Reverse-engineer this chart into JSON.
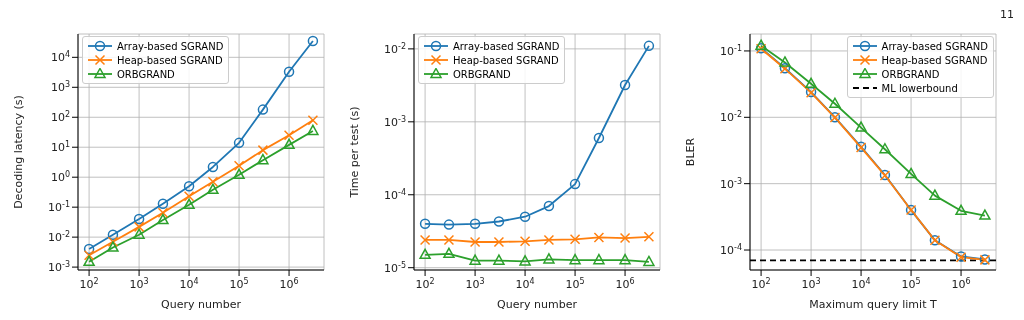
{
  "chart_data": [
    {
      "type": "line",
      "xlabel": "Query number",
      "ylabel": "Decoding latency (s)",
      "log": "xy",
      "grid": true,
      "legend": "top left",
      "x": [
        100,
        300,
        1000,
        3000,
        10000,
        30000,
        100000,
        300000,
        1000000,
        3000000
      ],
      "xlim": [
        60,
        5000000
      ],
      "xticks": [
        {
          "value": 100,
          "label": "10$^{2}$"
        },
        {
          "value": 1000,
          "label": "10$^{3}$"
        },
        {
          "value": 10000,
          "label": "10$^{4}$"
        },
        {
          "value": 100000,
          "label": "10$^{5}$"
        },
        {
          "value": 1000000,
          "label": "10$^{6}$"
        }
      ],
      "ylim": [
        0.0008,
        60000
      ],
      "yticks": [
        {
          "value": 0.001,
          "label": "10$^{-3}$"
        },
        {
          "value": 0.01,
          "label": "10$^{-2}$"
        },
        {
          "value": 0.1,
          "label": "10$^{-1}$"
        },
        {
          "value": 1,
          "label": "10$^{0}$"
        },
        {
          "value": 10,
          "label": "10$^{1}$"
        },
        {
          "value": 100,
          "label": "10$^{2}$"
        },
        {
          "value": 1000,
          "label": "10$^{3}$"
        },
        {
          "value": 10000,
          "label": "10$^{4}$"
        }
      ],
      "series": [
        {
          "name": "Array-based SGRAND",
          "color": "#1f77b4",
          "marker": "circle",
          "values": [
            0.004,
            0.012,
            0.04,
            0.13,
            0.5,
            2.2,
            14,
            180,
            3300,
            35000
          ]
        },
        {
          "name": "Heap-based SGRAND",
          "color": "#ff7f0e",
          "marker": "cross",
          "values": [
            0.0025,
            0.007,
            0.022,
            0.065,
            0.23,
            0.7,
            2.4,
            8,
            25,
            80
          ]
        },
        {
          "name": "ORBGRAND",
          "color": "#2ca02c",
          "marker": "triangle",
          "values": [
            0.0015,
            0.0045,
            0.012,
            0.037,
            0.12,
            0.38,
            1.2,
            3.7,
            12,
            35
          ]
        }
      ]
    },
    {
      "type": "line",
      "xlabel": "Query number",
      "ylabel": "Time per test (s)",
      "log": "xy",
      "grid": true,
      "legend": "top left",
      "x": [
        100,
        300,
        1000,
        3000,
        10000,
        30000,
        100000,
        300000,
        1000000,
        3000000
      ],
      "xlim": [
        60,
        5000000
      ],
      "xticks": [
        {
          "value": 100,
          "label": "10$^{2}$"
        },
        {
          "value": 1000,
          "label": "10$^{3}$"
        },
        {
          "value": 10000,
          "label": "10$^{4}$"
        },
        {
          "value": 100000,
          "label": "10$^{5}$"
        },
        {
          "value": 1000000,
          "label": "10$^{6}$"
        }
      ],
      "ylim": [
        9.3e-06,
        0.016
      ],
      "yticks": [
        {
          "value": 1e-05,
          "label": "10$^{-5}$"
        },
        {
          "value": 0.0001,
          "label": "10$^{-4}$"
        },
        {
          "value": 0.001,
          "label": "10$^{-3}$"
        },
        {
          "value": 0.01,
          "label": "10$^{-2}$"
        }
      ],
      "series": [
        {
          "name": "Array-based SGRAND",
          "color": "#1f77b4",
          "marker": "circle",
          "values": [
            4e-05,
            3.9e-05,
            4e-05,
            4.3e-05,
            5e-05,
            7e-05,
            0.00014,
            0.0006,
            0.0032,
            0.011
          ]
        },
        {
          "name": "Heap-based SGRAND",
          "color": "#ff7f0e",
          "marker": "cross",
          "values": [
            2.4e-05,
            2.4e-05,
            2.25e-05,
            2.25e-05,
            2.3e-05,
            2.4e-05,
            2.45e-05,
            2.6e-05,
            2.55e-05,
            2.65e-05
          ]
        },
        {
          "name": "ORBGRAND",
          "color": "#2ca02c",
          "marker": "triangle",
          "values": [
            1.5e-05,
            1.55e-05,
            1.25e-05,
            1.25e-05,
            1.22e-05,
            1.3e-05,
            1.27e-05,
            1.27e-05,
            1.27e-05,
            1.2e-05
          ]
        }
      ]
    },
    {
      "type": "line",
      "xlabel": "Maximum query limit T",
      "ylabel": "BLER",
      "log": "xy",
      "grid": true,
      "legend": "top right",
      "annotations": [
        "11"
      ],
      "x": [
        100,
        300,
        1000,
        3000,
        10000,
        30000,
        100000,
        300000,
        1000000,
        3000000
      ],
      "xlim": [
        60,
        5000000
      ],
      "xticks": [
        {
          "value": 100,
          "label": "10$^{2}$"
        },
        {
          "value": 1000,
          "label": "10$^{3}$"
        },
        {
          "value": 10000,
          "label": "10$^{4}$"
        },
        {
          "value": 100000,
          "label": "10$^{5}$"
        },
        {
          "value": 1000000,
          "label": "10$^{6}$"
        }
      ],
      "ylim": [
        5e-05,
        0.18
      ],
      "yticks": [
        {
          "value": 0.0001,
          "label": "10$^{-4}$"
        },
        {
          "value": 0.001,
          "label": "10$^{-3}$"
        },
        {
          "value": 0.01,
          "label": "10$^{-2}$"
        },
        {
          "value": 0.1,
          "label": "10$^{-1}$"
        }
      ],
      "ref_lines": [
        {
          "axis": "y",
          "value": 7e-05,
          "label": "ML lowerbound",
          "color": "#000000",
          "line_style": "dashed"
        }
      ],
      "series": [
        {
          "name": "Array-based SGRAND",
          "color": "#1f77b4",
          "marker": "circle",
          "values": [
            0.11,
            0.055,
            0.024,
            0.01,
            0.0036,
            0.00135,
            0.0004,
            0.00014,
            8e-05,
            7.2e-05
          ]
        },
        {
          "name": "Heap-based SGRAND",
          "color": "#ff7f0e",
          "marker": "cross",
          "values": [
            0.108,
            0.054,
            0.0235,
            0.0099,
            0.0035,
            0.00133,
            0.0004,
            0.00014,
            7.8e-05,
            7.1e-05
          ]
        },
        {
          "name": "ORBGRAND",
          "color": "#2ca02c",
          "marker": "triangle",
          "values": [
            0.12,
            0.067,
            0.032,
            0.016,
            0.007,
            0.0033,
            0.0014,
            0.00066,
            0.00039,
            0.00033
          ]
        }
      ]
    }
  ]
}
